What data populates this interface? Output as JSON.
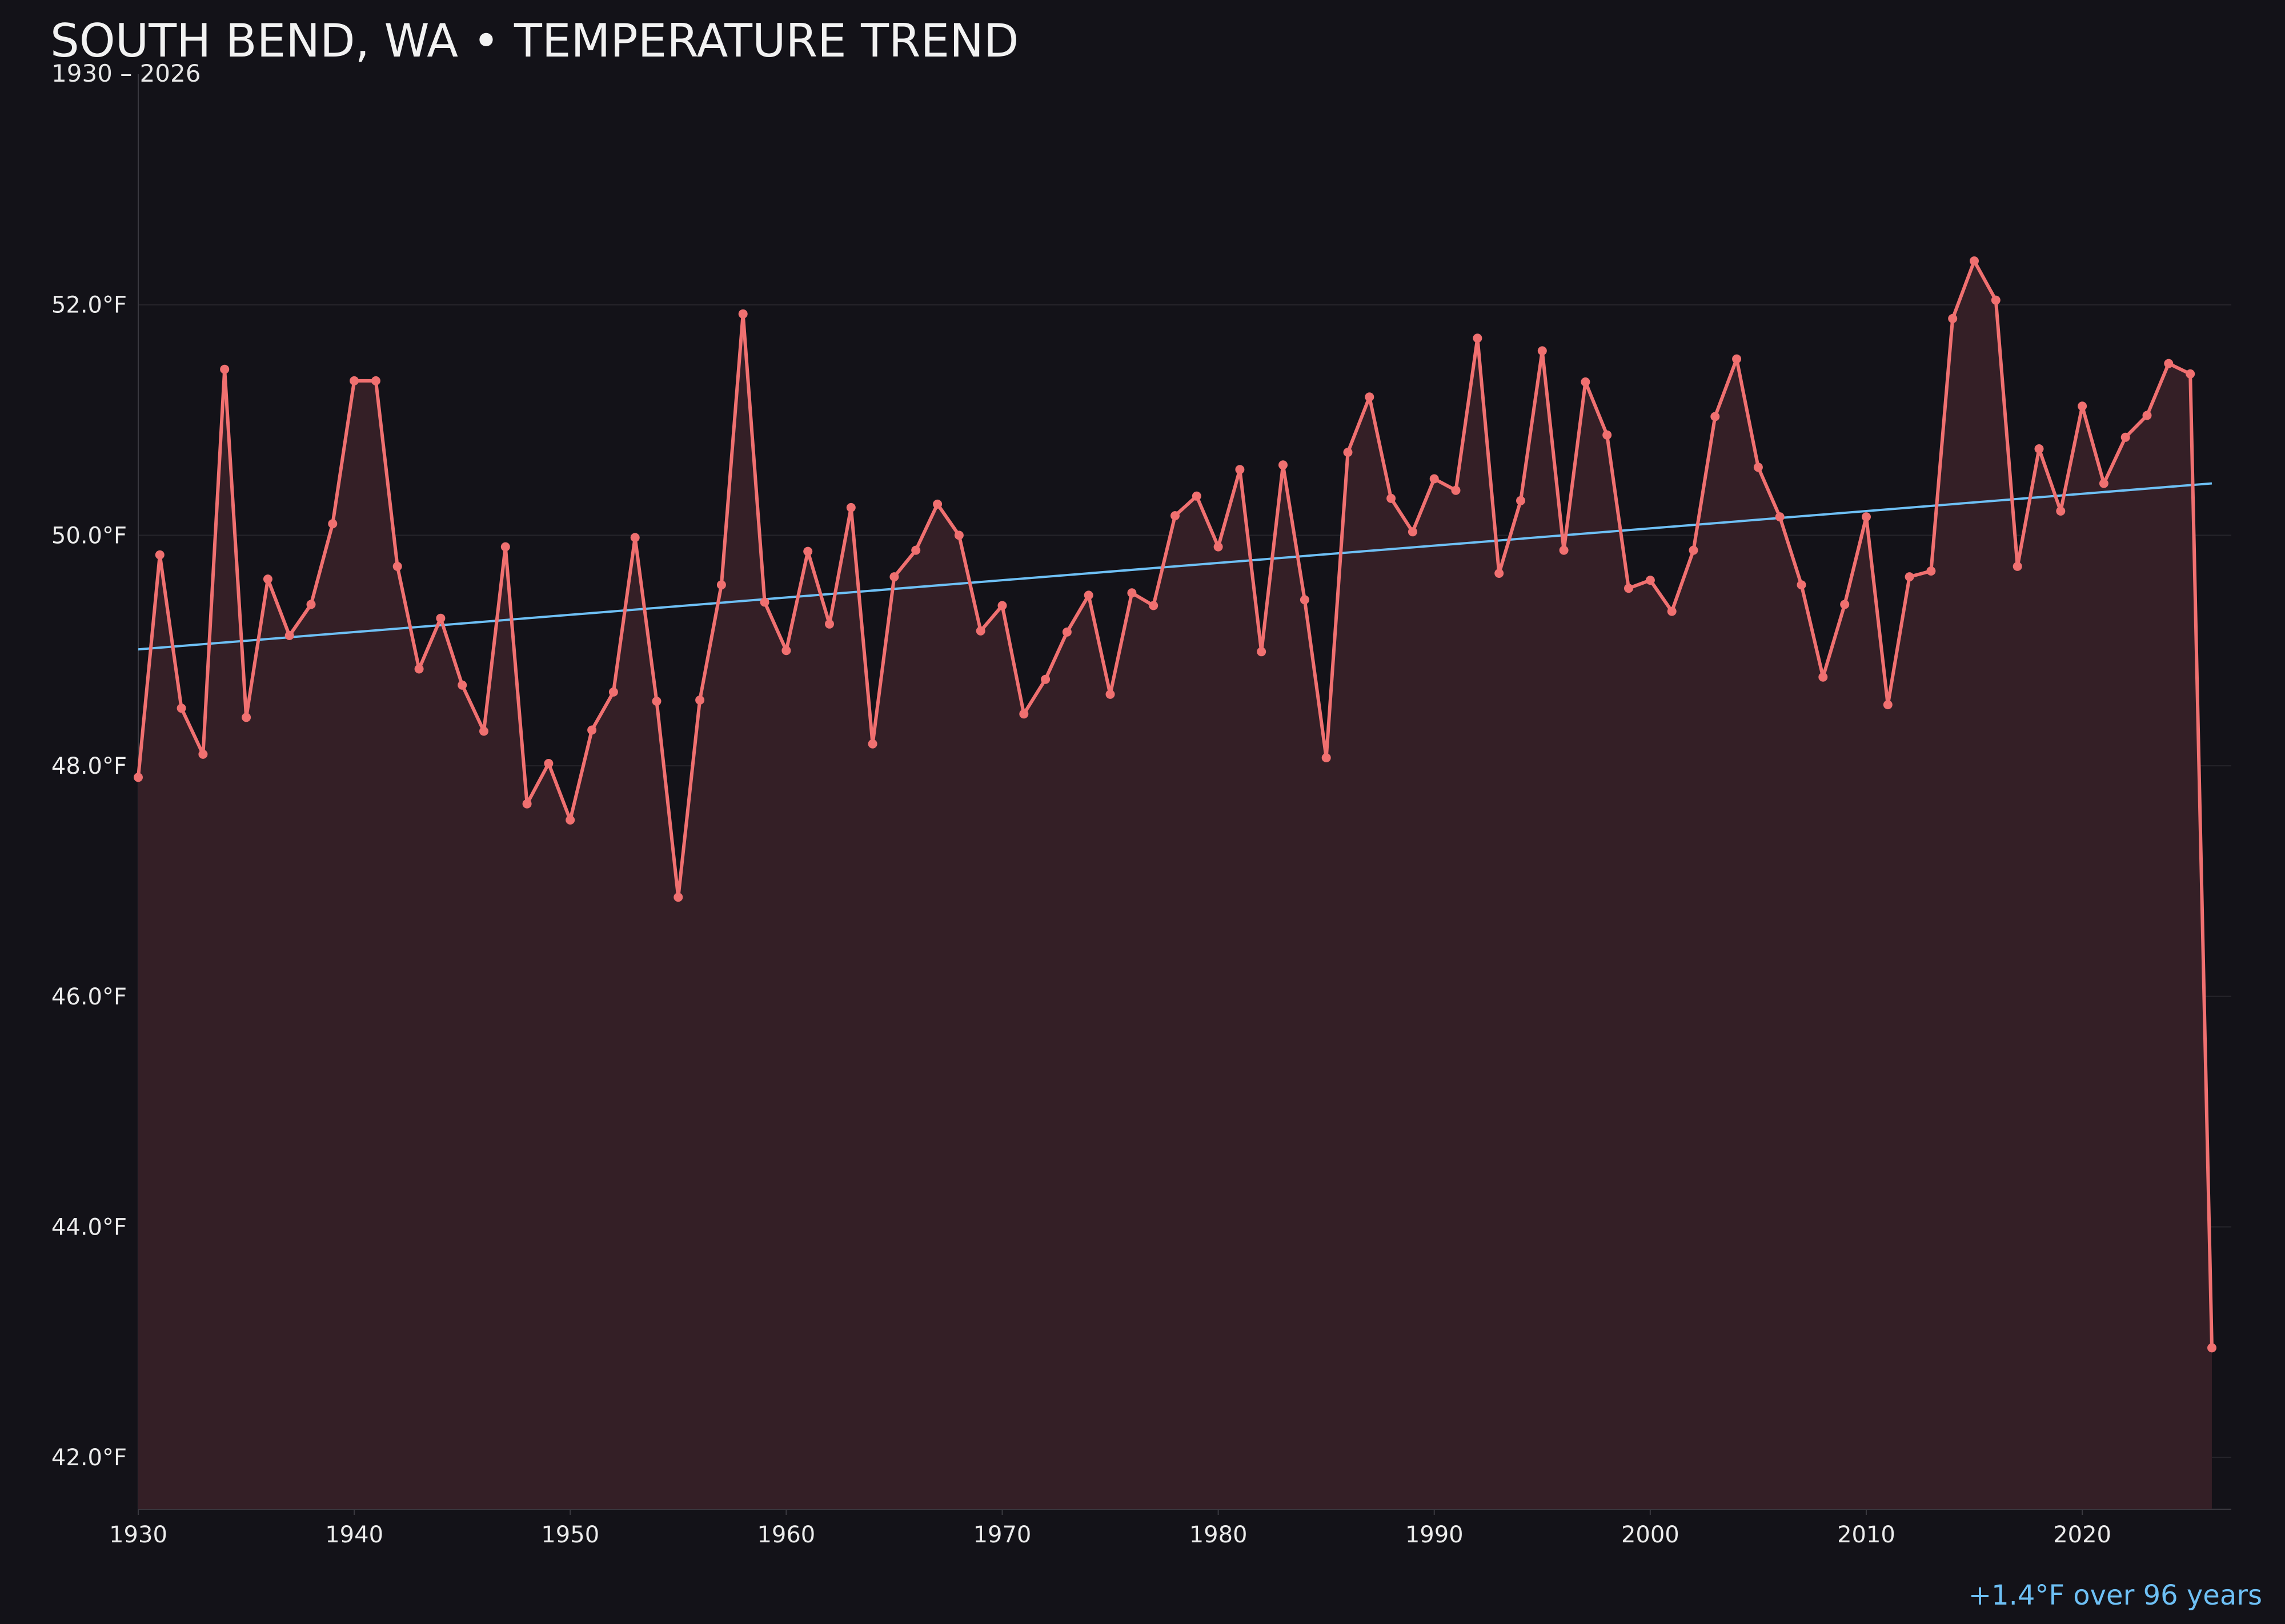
{
  "chart_data": {
    "type": "line",
    "title": "SOUTH BEND, WA • TEMPERATURE TREND",
    "subtitle": "1930 – 2026",
    "xlabel": "",
    "ylabel": "",
    "ylim": [
      41.55,
      54.0
    ],
    "xlim": [
      1930,
      2026.9
    ],
    "yticks": [
      42.0,
      44.0,
      46.0,
      48.0,
      50.0,
      52.0
    ],
    "ytick_labels": [
      "42.0°F",
      "44.0°F",
      "46.0°F",
      "48.0°F",
      "50.0°F",
      "52.0°F"
    ],
    "xticks": [
      1930,
      1940,
      1950,
      1960,
      1970,
      1980,
      1990,
      2000,
      2010,
      2020
    ],
    "xtick_labels": [
      "1930",
      "1940",
      "1950",
      "1960",
      "1970",
      "1980",
      "1990",
      "2000",
      "2010",
      "2020"
    ],
    "grid": true,
    "colors": {
      "background": "#131218",
      "series_line": "#f07070",
      "series_fill": "#341f26",
      "trend_line": "#6ec0f5",
      "grid": "#26252b"
    },
    "series": [
      {
        "x": [
          1930,
          1931,
          1932,
          1933,
          1934,
          1935,
          1936,
          1937,
          1938,
          1939,
          1940,
          1941,
          1942,
          1943,
          1944,
          1945,
          1946,
          1947,
          1948,
          1949,
          1950,
          1951,
          1952,
          1953,
          1954,
          1955,
          1956,
          1957,
          1958,
          1959,
          1960,
          1961,
          1962,
          1963,
          1964,
          1965,
          1966,
          1967,
          1968,
          1969,
          1970,
          1971,
          1972,
          1973,
          1974,
          1975,
          1976,
          1977,
          1978,
          1979,
          1980,
          1981,
          1982,
          1983,
          1984,
          1985,
          1986,
          1987,
          1988,
          1989,
          1990,
          1991,
          1992,
          1993,
          1994,
          1995,
          1996,
          1997,
          1998,
          1999,
          2000,
          2001,
          2002,
          2003,
          2004,
          2005,
          2006,
          2007,
          2008,
          2009,
          2010,
          2011,
          2012,
          2013,
          2014,
          2015,
          2016,
          2017,
          2018,
          2019,
          2020,
          2021,
          2022,
          2023,
          2024,
          2025,
          2026
        ],
        "values": [
          47.9,
          49.83,
          48.5,
          48.1,
          51.44,
          48.42,
          49.62,
          49.13,
          49.4,
          50.1,
          51.34,
          51.34,
          49.73,
          48.84,
          49.28,
          48.7,
          48.3,
          49.9,
          47.67,
          48.02,
          47.53,
          48.31,
          48.64,
          49.98,
          48.56,
          46.86,
          48.57,
          49.57,
          51.92,
          49.42,
          49.0,
          49.86,
          49.23,
          50.24,
          48.19,
          49.64,
          49.87,
          50.27,
          50.0,
          49.17,
          49.39,
          48.45,
          48.75,
          49.16,
          49.48,
          48.62,
          49.5,
          49.39,
          50.17,
          50.34,
          49.9,
          50.57,
          48.99,
          50.61,
          49.44,
          48.07,
          50.72,
          51.2,
          50.32,
          50.03,
          50.49,
          50.39,
          51.71,
          49.67,
          50.3,
          51.6,
          49.87,
          51.33,
          50.87,
          49.54,
          49.61,
          49.34,
          49.87,
          51.03,
          51.53,
          50.59,
          50.16,
          49.57,
          48.77,
          49.4,
          50.16,
          48.53,
          49.64,
          49.69,
          51.88,
          52.38,
          52.04,
          49.73,
          50.75,
          50.21,
          51.12,
          50.45,
          50.85,
          51.04,
          51.49,
          51.4,
          42.95
        ]
      }
    ],
    "trend": {
      "start": [
        1930,
        49.01
      ],
      "end": [
        2026,
        50.45
      ]
    },
    "annotation": "+1.4°F over 96 years"
  }
}
